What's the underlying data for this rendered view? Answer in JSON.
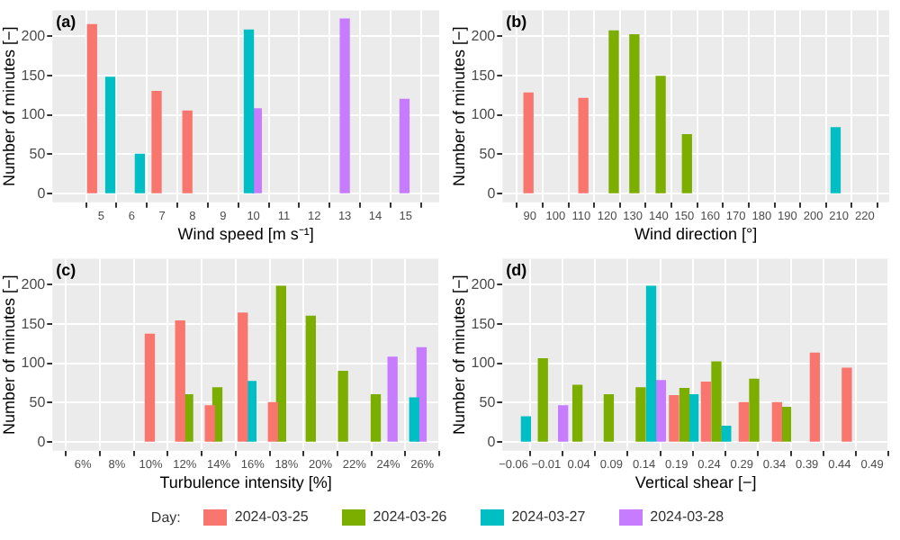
{
  "chart_data": [
    {
      "type": "bar",
      "title": "(a)",
      "xlabel": "Wind speed [m s⁻¹]",
      "ylabel": "Number of minutes [−]",
      "xlim": [
        3.4,
        16.1
      ],
      "xticks": [
        5,
        6,
        7,
        8,
        9,
        10,
        11,
        12,
        13,
        14,
        15
      ],
      "ylim": [
        -11,
        233
      ],
      "yticks": [
        0,
        50,
        100,
        150,
        200
      ],
      "grid": true,
      "legend": "bottom",
      "legend_title": "Day:",
      "series": [
        {
          "name": "2024-03-25",
          "color": "#f8766d",
          "x": [
            4.7,
            6.82,
            7.83
          ],
          "values": [
            215,
            130,
            105
          ]
        },
        {
          "name": "2024-03-26",
          "color": "#7cae00"
        },
        {
          "name": "2024-03-27",
          "color": "#00bfc4",
          "x": [
            5.3,
            6.27,
            9.85
          ],
          "values": [
            148,
            50,
            208
          ]
        },
        {
          "name": "2024-03-28",
          "color": "#c77cff",
          "x": [
            10.11,
            13.0,
            14.96
          ],
          "values": [
            108,
            222,
            120
          ]
        }
      ]
    },
    {
      "type": "bar",
      "title": "(b)",
      "xlabel": "Wind direction [°]",
      "ylabel": "Number of minutes [−]",
      "xlim": [
        79.4,
        229.5
      ],
      "xticks": [
        90,
        100,
        110,
        120,
        130,
        140,
        150,
        160,
        170,
        180,
        190,
        200,
        210,
        220
      ],
      "ylim": [
        -11,
        233
      ],
      "yticks": [
        0,
        50,
        100,
        150,
        200
      ],
      "grid": true,
      "series": [
        {
          "color": "#f8766d",
          "x": [
            89.5,
            110.8
          ],
          "values": [
            128,
            121
          ]
        },
        {
          "color": "#7cae00",
          "x": [
            122.6,
            130.6,
            140.8,
            151
          ],
          "values": [
            207,
            202,
            149,
            75
          ]
        },
        {
          "color": "#00bfc4",
          "x": [
            208.7
          ],
          "values": [
            84
          ]
        }
      ]
    },
    {
      "type": "bar",
      "title": "(c)",
      "xlabel": "Turbulence intensity [%]",
      "ylabel": "Number of minutes [−]",
      "xlim": [
        4.2,
        27
      ],
      "xticks": [
        {
          "value": 6,
          "label": "6%"
        },
        {
          "value": 8,
          "label": "8%"
        },
        {
          "value": 10,
          "label": "10%"
        },
        {
          "value": 12,
          "label": "12%"
        },
        {
          "value": 14,
          "label": "14%"
        },
        {
          "value": 16,
          "label": "16%"
        },
        {
          "value": 18,
          "label": "18%"
        },
        {
          "value": 20,
          "label": "20%"
        },
        {
          "value": 22,
          "label": "22%"
        },
        {
          "value": 24,
          "label": "24%"
        },
        {
          "value": 26,
          "label": "26%"
        }
      ],
      "ylim": [
        -11,
        233
      ],
      "yticks": [
        0,
        50,
        100,
        150,
        200
      ],
      "grid": true,
      "series": [
        {
          "color": "#f8766d",
          "x": [
            9.94,
            11.73,
            13.48,
            15.42,
            17.2
          ],
          "values": [
            137,
            154,
            46,
            164,
            50
          ]
        },
        {
          "color": "#7cae00",
          "x": [
            12.2,
            13.92,
            17.68,
            19.43,
            21.33,
            23.26
          ],
          "values": [
            60,
            69,
            198,
            160,
            90,
            60
          ]
        },
        {
          "color": "#00bfc4",
          "x": [
            15.93,
            25.53
          ],
          "values": [
            77,
            56
          ]
        },
        {
          "color": "#c77cff",
          "x": [
            24.25,
            25.96
          ],
          "values": [
            108,
            120
          ]
        }
      ]
    },
    {
      "type": "bar",
      "title": "(d)",
      "xlabel": "Vertical shear [−]",
      "ylabel": "Number of minutes [−]",
      "xlim": [
        -0.077,
        0.516
      ],
      "xticks": [
        {
          "value": -0.06,
          "label": "−0.06"
        },
        {
          "value": -0.01,
          "label": "−0.01"
        },
        0.04,
        0.09,
        0.14,
        0.19,
        0.24,
        0.29,
        0.34,
        0.39,
        0.44,
        0.49
      ],
      "ylim": [
        -11,
        233
      ],
      "yticks": [
        0,
        50,
        100,
        150,
        200
      ],
      "grid": true,
      "series": [
        {
          "color": "#f8766d",
          "x": [
            0.186,
            0.235,
            0.293,
            0.344,
            0.402,
            0.451
          ],
          "values": [
            59,
            76,
            50,
            50,
            113,
            94
          ]
        },
        {
          "color": "#7cae00",
          "x": [
            -0.015,
            0.038,
            0.086,
            0.135,
            0.202,
            0.251,
            0.309,
            0.358
          ],
          "values": [
            106,
            72,
            60,
            69,
            68,
            102,
            80,
            44
          ]
        },
        {
          "color": "#00bfc4",
          "x": [
            -0.041,
            0.151,
            0.216,
            0.266
          ],
          "values": [
            32,
            198,
            60,
            20
          ]
        },
        {
          "color": "#c77cff",
          "x": [
            0.016,
            0.166
          ],
          "values": [
            46,
            78
          ]
        }
      ]
    }
  ]
}
